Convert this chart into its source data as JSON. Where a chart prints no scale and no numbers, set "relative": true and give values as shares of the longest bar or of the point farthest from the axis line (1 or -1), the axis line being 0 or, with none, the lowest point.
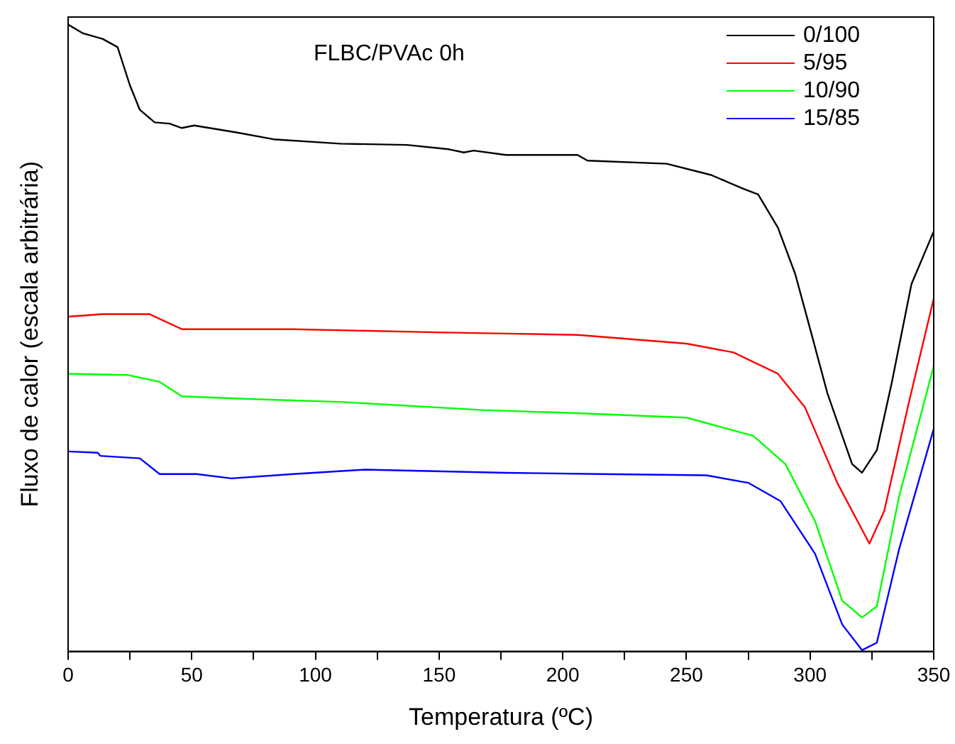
{
  "chart_data": {
    "type": "line",
    "relative": true,
    "xlabel": "Temperatura (ºC)",
    "ylabel": "Fluxo de calor (escala arbitrária)",
    "annotations": [
      "FLBC/PVAc 0h"
    ],
    "xlim": [
      0,
      350
    ],
    "xticks": [
      0,
      {
        "value": 25,
        "label": null
      },
      50,
      {
        "value": 75,
        "label": null
      },
      100,
      {
        "value": 125,
        "label": null
      },
      150,
      {
        "value": 175,
        "label": null
      },
      200,
      {
        "value": 225,
        "label": null
      },
      250,
      {
        "value": 275,
        "label": null
      },
      300,
      {
        "value": 325,
        "label": null
      },
      350
    ],
    "tick_labels": "x",
    "grid": false,
    "legend": "top right",
    "marker": "none",
    "line_style": "solid",
    "series": [
      {
        "name": "0/100",
        "color": "#000000",
        "x": [
          0,
          6,
          14,
          20,
          25,
          29,
          35,
          41,
          46,
          51,
          68,
          83,
          110,
          137,
          154,
          160,
          164,
          177,
          206,
          210,
          242,
          260,
          273,
          279,
          287,
          294,
          300,
          307,
          317,
          321,
          327,
          333,
          341,
          350
        ],
        "values": [
          1.0,
          0.986,
          0.977,
          0.964,
          0.903,
          0.864,
          0.844,
          0.842,
          0.835,
          0.839,
          0.828,
          0.817,
          0.81,
          0.808,
          0.801,
          0.796,
          0.799,
          0.792,
          0.792,
          0.783,
          0.778,
          0.76,
          0.738,
          0.729,
          0.676,
          0.602,
          0.515,
          0.412,
          0.299,
          0.285,
          0.321,
          0.428,
          0.586,
          0.67
        ]
      },
      {
        "name": "5/95",
        "color": "#ff0000",
        "x": [
          0,
          14,
          33,
          46,
          91,
          149,
          177,
          206,
          250,
          269,
          287,
          298,
          311,
          324,
          330,
          340,
          350
        ],
        "values": [
          0.534,
          0.538,
          0.538,
          0.514,
          0.514,
          0.509,
          0.507,
          0.505,
          0.491,
          0.477,
          0.443,
          0.389,
          0.269,
          0.172,
          0.224,
          0.398,
          0.563
        ]
      },
      {
        "name": "10/90",
        "color": "#00ff00",
        "x": [
          0,
          24,
          37,
          46,
          71,
          110,
          168,
          206,
          250,
          277,
          290,
          302,
          313,
          321,
          327,
          336,
          350
        ],
        "values": [
          0.443,
          0.441,
          0.43,
          0.407,
          0.403,
          0.398,
          0.385,
          0.38,
          0.373,
          0.344,
          0.299,
          0.208,
          0.081,
          0.054,
          0.072,
          0.247,
          0.455
        ]
      },
      {
        "name": "15/85",
        "color": "#0000ff",
        "x": [
          0,
          12,
          13,
          29,
          37,
          52,
          66,
          91,
          120,
          177,
          215,
          258,
          275,
          288,
          302,
          313,
          321,
          327,
          336,
          350
        ],
        "values": [
          0.319,
          0.317,
          0.312,
          0.308,
          0.283,
          0.283,
          0.276,
          0.283,
          0.29,
          0.285,
          0.283,
          0.281,
          0.269,
          0.24,
          0.156,
          0.043,
          0.002,
          0.014,
          0.163,
          0.355
        ]
      }
    ]
  }
}
